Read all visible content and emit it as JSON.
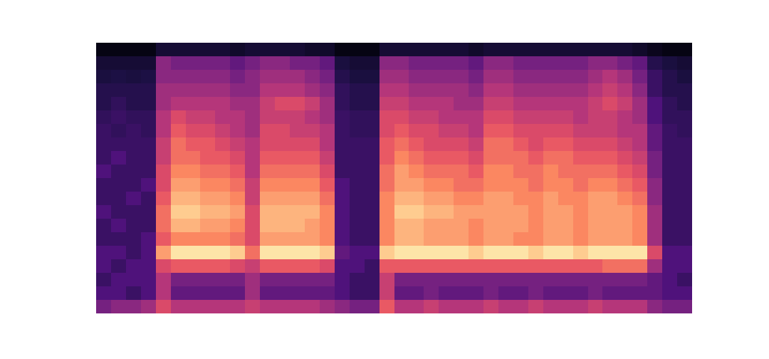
{
  "chart_data": {
    "type": "heatmap",
    "color": "magma",
    "tick_labels": false,
    "grid": false,
    "zlim": [
      0,
      10
    ],
    "cells": [
      [
        3.5,
        2.5,
        2,
        2.5,
        2.5,
        2,
        2,
        2.5,
        2,
        2,
        2.5,
        2,
        2,
        2,
        1.8,
        1.5,
        1.5,
        1.2,
        1,
        0.3
      ],
      [
        4,
        2.5,
        2.5,
        2,
        2.5,
        2,
        2.5,
        2,
        2,
        2,
        2,
        2.5,
        2,
        1.8,
        2,
        1.8,
        1.5,
        1.3,
        1,
        0.3
      ],
      [
        4,
        2,
        2.5,
        2.5,
        2,
        2,
        2,
        2,
        2.5,
        2,
        2,
        2,
        2,
        2,
        1.8,
        1.5,
        1.5,
        1.2,
        1,
        0.3
      ],
      [
        4.5,
        2.5,
        2.5,
        2.5,
        2.5,
        2.5,
        2,
        2,
        2,
        2.5,
        2,
        2,
        2,
        1.8,
        1.8,
        1.5,
        1.5,
        1.3,
        1,
        0.3
      ],
      [
        6,
        5,
        5,
        6,
        8,
        6.5,
        7,
        7,
        6.5,
        6,
        6,
        5.5,
        5.5,
        5,
        5,
        4.5,
        4.5,
        4,
        4,
        1
      ],
      [
        5,
        3,
        3.5,
        6.5,
        9.5,
        7.5,
        8.5,
        9,
        8.5,
        8,
        7.5,
        7,
        7,
        6.5,
        6,
        5,
        4.5,
        4,
        3.5,
        1
      ],
      [
        5,
        3,
        3.5,
        6.5,
        9.5,
        7.5,
        8.5,
        9,
        8.5,
        8,
        7.5,
        7,
        6.5,
        6,
        5.5,
        5,
        4.5,
        4,
        3.5,
        1
      ],
      [
        5,
        3,
        3.5,
        6.5,
        9.5,
        7.5,
        8,
        8.5,
        8,
        7.5,
        7,
        6.5,
        6.5,
        6,
        5.5,
        5,
        4.5,
        4,
        3.5,
        1
      ],
      [
        5,
        3,
        3.5,
        6.5,
        9.5,
        7.5,
        8,
        8.5,
        8,
        7.5,
        7,
        6.5,
        6,
        5.5,
        5,
        5,
        4.5,
        4,
        3.5,
        1
      ],
      [
        5,
        3,
        3.5,
        6,
        9,
        7,
        7.5,
        8,
        7.5,
        7,
        6.5,
        6,
        5.5,
        5,
        5,
        4.5,
        4,
        3.5,
        3,
        0.8
      ],
      [
        5.5,
        4.5,
        4.5,
        5.5,
        7,
        6,
        6,
        6,
        5.5,
        5.5,
        5,
        5,
        5,
        4.5,
        4.5,
        4.5,
        4,
        4,
        3.5,
        1
      ],
      [
        5,
        3,
        3.5,
        6.5,
        9.5,
        8,
        8.5,
        8.5,
        8,
        7.5,
        7,
        6.5,
        6,
        6,
        5.5,
        5.5,
        5,
        4.5,
        4,
        1
      ],
      [
        5,
        3,
        3.5,
        6.5,
        9.5,
        8,
        8.5,
        8.5,
        8,
        7.5,
        7,
        6.5,
        6,
        6,
        5.5,
        6,
        5,
        4.5,
        4,
        1
      ],
      [
        5,
        3,
        3.5,
        6.5,
        9.5,
        8,
        8.5,
        8.5,
        8,
        7.5,
        7,
        6.5,
        6,
        5.5,
        5.5,
        6,
        5,
        4.5,
        3.5,
        1
      ],
      [
        5,
        3,
        3.5,
        6.5,
        9.5,
        8,
        8,
        8.5,
        8,
        7.5,
        7,
        6.5,
        6,
        5.5,
        5,
        5.5,
        4.5,
        4,
        3.5,
        0.8
      ],
      [
        4.5,
        3,
        3.5,
        6,
        9,
        7.5,
        7.5,
        7.5,
        7,
        6.5,
        6,
        5.5,
        5,
        5,
        4.5,
        4.5,
        4,
        3.5,
        3,
        0.8
      ],
      [
        4,
        2.5,
        2.5,
        2.5,
        3,
        2.5,
        2.5,
        2.5,
        2.5,
        2.5,
        2,
        2,
        2,
        2,
        2,
        1.8,
        1.8,
        1.5,
        1.2,
        0.3
      ],
      [
        3.5,
        2,
        2,
        2.5,
        2.5,
        2,
        2,
        2,
        2,
        2,
        2,
        2,
        2,
        1.8,
        1.8,
        1.5,
        1.5,
        1.2,
        1,
        0.3
      ],
      [
        3.5,
        2,
        2,
        2,
        2.5,
        2,
        2,
        2,
        2,
        2,
        2,
        2,
        2,
        1.8,
        1.8,
        1.5,
        1.5,
        1.2,
        1,
        0.3
      ],
      [
        6.5,
        5.5,
        5.5,
        6.5,
        9,
        7.5,
        7.5,
        7.5,
        7.5,
        7,
        7,
        6.5,
        6.5,
        6,
        6,
        5.5,
        5,
        4.5,
        4,
        1
      ],
      [
        5,
        3,
        3.5,
        6.5,
        9.5,
        8.5,
        8.5,
        9,
        8.5,
        8,
        8,
        7.5,
        7,
        6.5,
        6,
        5.5,
        5,
        4.5,
        4,
        1
      ],
      [
        5,
        3,
        3.5,
        6.5,
        9.5,
        8.5,
        8.5,
        9,
        8.5,
        8,
        7.5,
        7,
        6.5,
        6,
        5.5,
        5,
        4.5,
        4,
        3.5,
        1
      ],
      [
        5.5,
        3.5,
        3.5,
        6.5,
        9.5,
        8,
        8,
        8.5,
        8,
        7.5,
        7,
        6.5,
        6,
        6,
        5.5,
        5,
        4.5,
        4,
        3.5,
        1
      ],
      [
        5,
        3,
        3.5,
        6.5,
        9.5,
        8,
        8,
        8.5,
        8,
        7.5,
        7,
        6.5,
        6,
        5.5,
        5,
        5,
        4.5,
        4,
        3.5,
        1
      ],
      [
        5,
        3,
        3.5,
        6.5,
        9.5,
        8,
        8,
        8,
        7.5,
        7,
        7,
        6.5,
        6,
        5.5,
        5,
        4.5,
        4.5,
        4,
        3.5,
        1
      ],
      [
        5,
        3,
        3.5,
        6.5,
        9,
        7.5,
        7.5,
        8,
        7.5,
        7,
        6.5,
        6,
        5.5,
        5,
        5,
        4.5,
        4,
        3.5,
        3,
        0.8
      ],
      [
        5.5,
        3.5,
        3.5,
        6.5,
        9.5,
        8,
        8,
        8,
        8,
        7.5,
        7.5,
        7,
        7,
        6.5,
        6,
        5.5,
        5,
        4.5,
        4,
        1
      ],
      [
        5,
        3,
        3.5,
        6.5,
        9.5,
        8,
        8,
        8,
        8,
        7.5,
        7.5,
        7,
        7,
        6.5,
        6,
        5.5,
        5,
        4.5,
        4,
        1
      ],
      [
        5,
        3,
        3.5,
        6.5,
        9.5,
        7.5,
        8,
        8,
        7.5,
        7.5,
        7,
        7,
        6.5,
        6,
        5.5,
        5,
        4.5,
        4,
        3.5,
        1
      ],
      [
        5.5,
        3.5,
        3.5,
        6.5,
        9,
        7.5,
        7.5,
        7.5,
        7.5,
        7,
        7,
        6.5,
        6,
        6,
        5.5,
        5,
        4.5,
        4,
        3.5,
        1
      ],
      [
        5,
        3,
        3.5,
        6.5,
        9.5,
        8,
        8,
        8,
        8,
        7.5,
        7.5,
        7,
        6.5,
        6,
        5.5,
        5,
        4.5,
        4,
        3.5,
        1
      ],
      [
        5,
        3,
        3.5,
        6.5,
        9.5,
        8,
        8,
        8,
        7.5,
        7.5,
        7,
        7,
        6.5,
        6,
        5.5,
        5,
        4.5,
        4,
        3.5,
        1
      ],
      [
        5,
        3,
        3.5,
        6.5,
        9,
        7.5,
        7.5,
        7.5,
        7.5,
        7,
        7,
        6.5,
        6,
        5.5,
        5,
        5,
        4.5,
        4,
        3.5,
        1
      ],
      [
        5.5,
        3.5,
        3.5,
        6.5,
        9.5,
        8,
        8,
        8,
        8,
        7.5,
        7,
        6.5,
        6,
        5.5,
        5.5,
        5.5,
        5,
        4.5,
        4,
        1
      ],
      [
        5,
        3,
        3.5,
        7,
        9.5,
        8,
        8,
        8,
        8,
        7.5,
        7,
        6.5,
        6,
        5.5,
        5.5,
        6,
        5.5,
        5,
        4,
        1
      ],
      [
        5,
        3,
        3.5,
        7,
        9.5,
        8,
        8,
        8,
        7.5,
        7,
        6.5,
        6,
        5.5,
        5,
        5,
        5.5,
        5,
        4.5,
        3.5,
        1
      ],
      [
        5,
        3,
        3.5,
        7,
        9.5,
        7.5,
        7.5,
        7.5,
        7,
        6.5,
        6,
        5.5,
        5,
        5,
        4.5,
        4.5,
        4,
        3.5,
        3,
        0.8
      ],
      [
        4,
        3,
        3,
        4.5,
        6,
        4.5,
        4.5,
        4.5,
        4,
        4,
        3.5,
        3.5,
        3,
        3,
        2.5,
        2.5,
        2,
        2,
        1.5,
        0.5
      ],
      [
        3.5,
        2.5,
        2.5,
        2.5,
        2.5,
        2,
        2,
        2,
        2,
        2,
        2,
        2,
        2,
        2,
        1.8,
        1.8,
        1.5,
        1.5,
        1.2,
        0.3
      ],
      [
        3.5,
        2.5,
        2,
        2.5,
        2.5,
        2,
        2,
        2,
        2,
        2,
        2,
        2,
        2,
        1.8,
        1.8,
        1.5,
        1.5,
        1.2,
        1,
        0.3
      ]
    ]
  }
}
